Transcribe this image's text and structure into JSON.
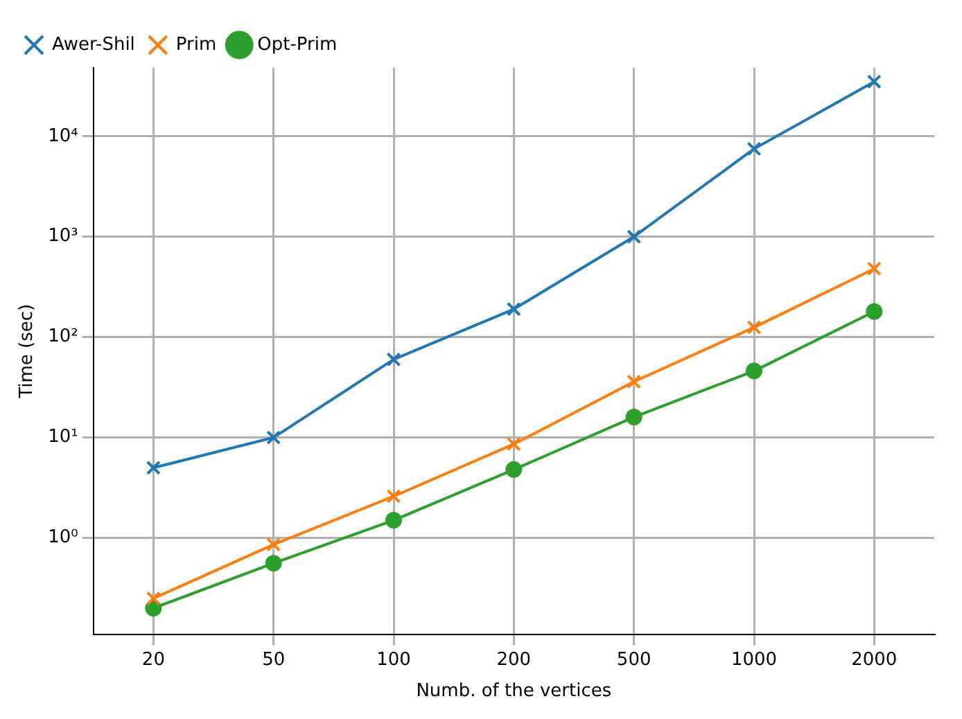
{
  "chart_data": {
    "type": "line",
    "xlabel": "Numb. of the vertices",
    "ylabel": "Time (sec)",
    "categories": [
      "20",
      "50",
      "100",
      "200",
      "500",
      "1000",
      "2000"
    ],
    "series": [
      {
        "name": "Awer-Shil",
        "color": "#1f77b4",
        "marker": "cross",
        "values": [
          5,
          10,
          60,
          190,
          1000,
          7500,
          35000
        ]
      },
      {
        "name": "Prim",
        "color": "#ff7f0e",
        "marker": "cross",
        "values": [
          0.25,
          0.86,
          2.6,
          8.6,
          36,
          125,
          480
        ]
      },
      {
        "name": "Opt-Prim",
        "color": "#2ca02c",
        "marker": "circle",
        "values": [
          0.2,
          0.56,
          1.5,
          4.8,
          16,
          46,
          180
        ]
      }
    ],
    "log": "y",
    "ylim": [
      0.11,
      48000
    ],
    "yticks": [
      {
        "value": 1,
        "label": "10⁰"
      },
      {
        "value": 10,
        "label": "10¹"
      },
      {
        "value": 100,
        "label": "10²"
      },
      {
        "value": 1000,
        "label": "10³"
      },
      {
        "value": 10000,
        "label": "10⁴"
      }
    ],
    "grid": true,
    "legend": "top left",
    "line_style": "solid"
  }
}
